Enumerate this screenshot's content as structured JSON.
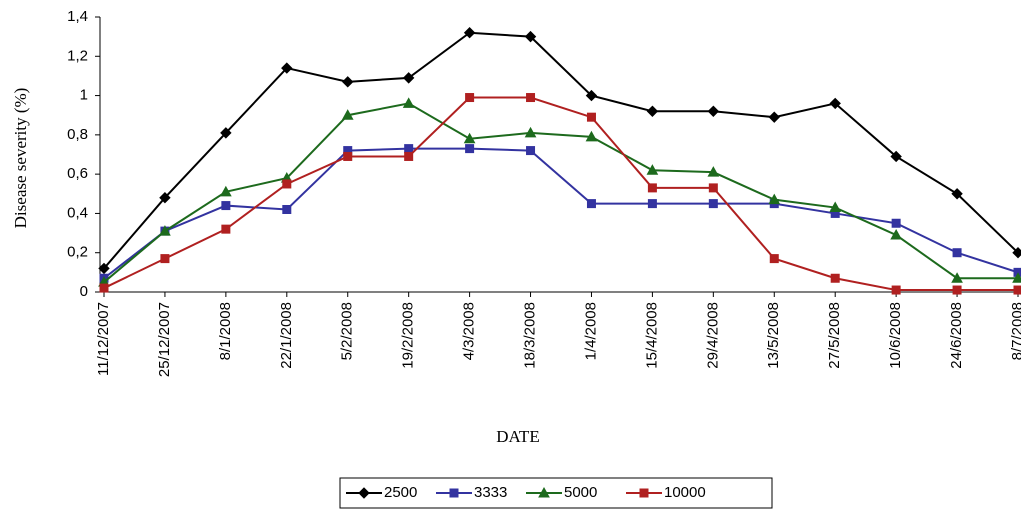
{
  "chart_data": {
    "type": "line",
    "y_label": "Disease severity (%)",
    "x_label": "DATE",
    "categories": [
      "11/12/2007",
      "25/12/2007",
      "8/1/2008",
      "22/1/2008",
      "5/2/2008",
      "19/2/2008",
      "4/3/2008",
      "18/3/2008",
      "1/4/2008",
      "15/4/2008",
      "29/4/2008",
      "13/5/2008",
      "27/5/2008",
      "10/6/2008",
      "24/6/2008",
      "8/7/2008"
    ],
    "series": [
      {
        "name": "2500",
        "color": "#000000",
        "marker": "diamond",
        "values": [
          0.12,
          0.48,
          0.81,
          1.14,
          1.07,
          1.09,
          1.32,
          1.3,
          1.0,
          0.92,
          0.92,
          0.89,
          0.96,
          0.69,
          0.5,
          0.2
        ]
      },
      {
        "name": "3333",
        "color": "#3333a0",
        "marker": "square",
        "values": [
          0.07,
          0.31,
          0.44,
          0.42,
          0.72,
          0.73,
          0.73,
          0.72,
          0.45,
          0.45,
          0.45,
          0.45,
          0.4,
          0.35,
          0.2,
          0.1
        ]
      },
      {
        "name": "5000",
        "color": "#1d6a1d",
        "marker": "triangle",
        "values": [
          0.05,
          0.31,
          0.51,
          0.58,
          0.9,
          0.96,
          0.78,
          0.81,
          0.79,
          0.62,
          0.61,
          0.47,
          0.43,
          0.29,
          0.07,
          0.07
        ]
      },
      {
        "name": "10000",
        "color": "#b02020",
        "marker": "square",
        "values": [
          0.02,
          0.17,
          0.32,
          0.55,
          0.69,
          0.69,
          0.99,
          0.99,
          0.89,
          0.53,
          0.53,
          0.17,
          0.07,
          0.01,
          0.01,
          0.01
        ]
      }
    ],
    "ylim": [
      0,
      1.4
    ],
    "yticks": [
      0,
      {
        "value": 0.2,
        "label": "0,2"
      },
      {
        "value": 0.4,
        "label": "0,4"
      },
      {
        "value": 0.6,
        "label": "0,6"
      },
      {
        "value": 0.8,
        "label": "0,8"
      },
      1,
      {
        "value": 1.2,
        "label": "1,2"
      },
      {
        "value": 1.4,
        "label": "1,4"
      }
    ],
    "grid": false,
    "legend": "bottom"
  }
}
